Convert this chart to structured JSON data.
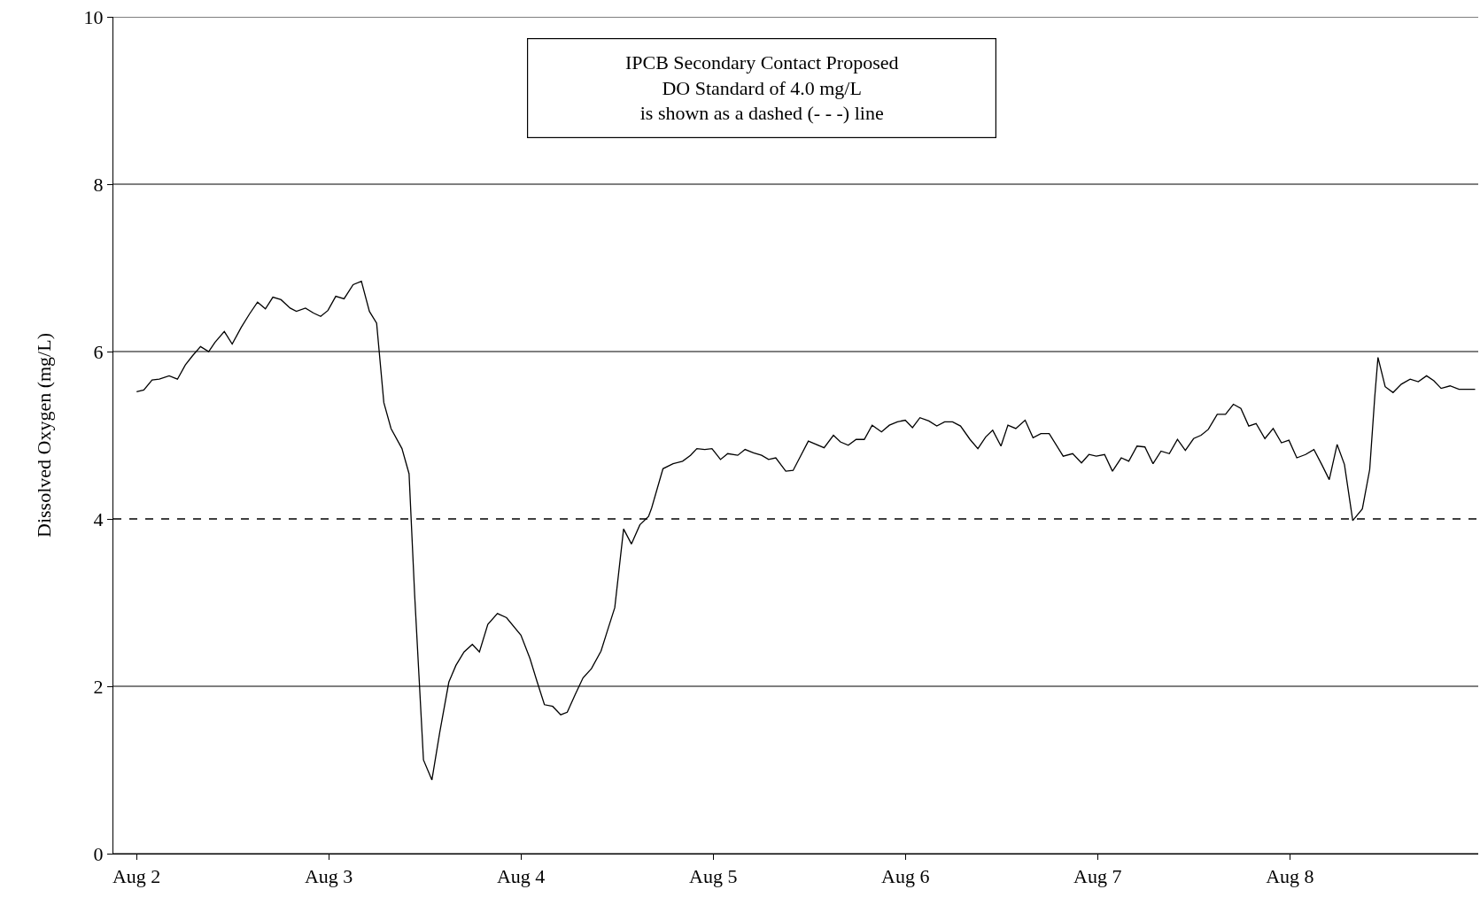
{
  "chart_data": {
    "type": "line",
    "ylabel": "Dissolved Oxygen (mg/L)",
    "annotations": [
      "IPCB Secondary Contact Proposed\nDO Standard of 4.0 mg/L\nis shown as a dashed (- - -) line"
    ],
    "x": [
      "--08-02T00:01",
      "--08-02T00:55",
      "--08-02T01:57",
      "--08-02T02:51",
      "--08-02T04:05",
      "--08-02T05:07",
      "--08-02T06:06",
      "--08-02T07:00",
      "--08-02T08:00",
      "--08-02T09:01",
      "--08-02T09:48",
      "--08-02T10:58",
      "--08-02T11:57",
      "--08-02T13:05",
      "--08-02T14:07",
      "--08-02T15:07",
      "--08-02T16:06",
      "--08-02T17:02",
      "--08-02T18:03",
      "--08-02T19:11",
      "--08-02T19:58",
      "--08-02T21:06",
      "--08-02T22:06",
      "--08-02T23:00",
      "--08-02T23:54",
      "--08-03T00:53",
      "--08-03T01:55",
      "--08-03T03:03",
      "--08-03T04:05",
      "--08-03T05:05",
      "--08-03T05:59",
      "--08-03T06:53",
      "--08-03T07:47",
      "--08-03T09:09",
      "--08-03T10:02",
      "--08-03T10:44",
      "--08-03T11:50",
      "--08-03T12:53",
      "--08-03T13:52",
      "--08-03T15:00",
      "--08-03T15:53",
      "--08-03T16:54",
      "--08-03T17:56",
      "--08-03T18:49",
      "--08-03T19:52",
      "--08-03T21:04",
      "--08-03T22:12",
      "--08-04T00:00",
      "--08-04T01:08",
      "--08-04T02:02",
      "--08-04T02:56",
      "--08-04T03:58",
      "--08-04T04:58",
      "--08-04T05:47",
      "--08-04T06:46",
      "--08-04T07:45",
      "--08-04T08:48",
      "--08-04T10:00",
      "--08-04T10:55",
      "--08-04T11:43",
      "--08-04T12:49",
      "--08-04T13:48",
      "--08-04T14:51",
      "--08-04T15:56",
      "--08-04T16:19",
      "--08-04T17:44",
      "--08-04T19:00",
      "--08-04T20:11",
      "--08-04T21:10",
      "--08-04T21:58",
      "--08-04T22:57",
      "--08-04T23:51",
      "--08-05T00:55",
      "--08-05T01:49",
      "--08-05T03:04",
      "--08-05T03:59",
      "--08-05T05:02",
      "--08-05T06:03",
      "--08-05T06:55",
      "--08-05T07:49",
      "--08-05T09:04",
      "--08-05T09:59",
      "--08-05T11:53",
      "--08-05T13:51",
      "--08-05T15:01",
      "--08-05T15:53",
      "--08-05T16:52",
      "--08-05T17:51",
      "--08-05T18:52",
      "--08-05T19:51",
      "--08-05T21:01",
      "--08-05T22:00",
      "--08-05T23:00",
      "--08-05T23:59",
      "--08-06T00:53",
      "--08-06T01:49",
      "--08-06T02:56",
      "--08-06T03:55",
      "--08-06T04:54",
      "--08-06T05:53",
      "--08-06T06:53",
      "--08-06T08:04",
      "--08-06T09:03",
      "--08-06T10:02",
      "--08-06T10:54",
      "--08-06T11:56",
      "--08-06T12:48",
      "--08-06T13:47",
      "--08-06T14:57",
      "--08-06T15:56",
      "--08-06T16:55",
      "--08-06T17:57",
      "--08-06T19:42",
      "--08-06T20:53",
      "--08-06T21:59",
      "--08-06T22:55",
      "--08-06T23:50",
      "--08-07T00:52",
      "--08-07T01:51",
      "--08-07T02:57",
      "--08-07T03:53",
      "--08-07T04:55",
      "--08-07T05:54",
      "--08-07T06:55",
      "--08-07T07:55",
      "--08-07T08:57",
      "--08-07T09:58",
      "--08-07T10:57",
      "--08-07T11:59",
      "--08-07T12:55",
      "--08-07T13:49",
      "--08-07T14:56",
      "--08-07T15:58",
      "--08-07T16:57",
      "--08-07T17:53",
      "--08-07T18:52",
      "--08-07T19:47",
      "--08-07T20:53",
      "--08-07T21:55",
      "--08-07T22:57",
      "--08-07T23:53",
      "--08-08T00:52",
      "--08-08T01:58",
      "--08-08T03:00",
      "--08-08T03:59",
      "--08-08T04:55",
      "--08-08T05:54",
      "--08-08T06:49",
      "--08-08T07:51",
      "--08-08T09:03",
      "--08-08T09:58",
      "--08-08T10:36",
      "--08-08T11:00",
      "--08-08T11:54",
      "--08-08T12:53",
      "--08-08T13:55",
      "--08-08T15:01",
      "--08-08T16:02",
      "--08-08T17:04",
      "--08-08T17:59",
      "--08-08T18:53",
      "--08-08T20:00",
      "--08-08T21:07",
      "--08-08T23:08"
    ],
    "series": [
      {
        "color": "#000000",
        "values": [
          5.52,
          5.54,
          5.66,
          5.67,
          5.71,
          5.67,
          5.84,
          5.95,
          6.06,
          6.0,
          6.11,
          6.24,
          6.09,
          6.29,
          6.45,
          6.59,
          6.51,
          6.65,
          6.62,
          6.52,
          6.48,
          6.52,
          6.46,
          6.42,
          6.49,
          6.66,
          6.63,
          6.8,
          6.84,
          6.48,
          6.34,
          5.39,
          5.08,
          4.84,
          4.54,
          3.09,
          1.12,
          0.88,
          1.45,
          2.05,
          2.25,
          2.41,
          2.5,
          2.41,
          2.74,
          2.87,
          2.82,
          2.61,
          2.33,
          2.05,
          1.78,
          1.76,
          1.66,
          1.69,
          1.9,
          2.1,
          2.21,
          2.42,
          2.7,
          2.94,
          3.88,
          3.7,
          3.93,
          4.03,
          4.13,
          4.6,
          4.66,
          4.69,
          4.76,
          4.84,
          4.83,
          4.84,
          4.71,
          4.78,
          4.76,
          4.83,
          4.79,
          4.76,
          4.71,
          4.73,
          4.57,
          4.58,
          4.93,
          4.85,
          5.0,
          4.92,
          4.88,
          4.95,
          4.95,
          5.12,
          5.04,
          5.12,
          5.16,
          5.18,
          5.09,
          5.21,
          5.17,
          5.11,
          5.16,
          5.16,
          5.11,
          4.95,
          4.84,
          4.98,
          5.06,
          4.87,
          5.12,
          5.08,
          5.18,
          4.97,
          5.02,
          5.02,
          4.75,
          4.78,
          4.67,
          4.77,
          4.75,
          4.77,
          4.57,
          4.73,
          4.69,
          4.87,
          4.86,
          4.66,
          4.81,
          4.78,
          4.95,
          4.82,
          4.96,
          5.0,
          5.07,
          5.25,
          5.25,
          5.37,
          5.32,
          5.11,
          5.14,
          4.96,
          5.08,
          4.91,
          4.94,
          4.73,
          4.77,
          4.83,
          4.65,
          4.47,
          4.89,
          4.65,
          3.98,
          4.12,
          4.59,
          5.46,
          5.93,
          5.58,
          5.51,
          5.61,
          5.67,
          5.64,
          5.71,
          5.65,
          5.56,
          5.59,
          5.55,
          5.55
        ]
      }
    ],
    "xlim": [
      "--08-01T21:07",
      "--08-08T23:31"
    ],
    "xticks": [
      {
        "value": "--08-02",
        "label": "Aug 2"
      },
      {
        "value": "--08-03",
        "label": "Aug 3"
      },
      {
        "value": "--08-04",
        "label": "Aug 4"
      },
      {
        "value": "--08-05",
        "label": "Aug 5"
      },
      {
        "value": "--08-06",
        "label": "Aug 6"
      },
      {
        "value": "--08-07",
        "label": "Aug 7"
      },
      {
        "value": "--08-08",
        "label": "Aug 8"
      }
    ],
    "ylim": [
      0,
      10
    ],
    "yticks": [
      0,
      2,
      4,
      6,
      8,
      10
    ],
    "ref_lines": [
      {
        "axis": "y",
        "value": 4,
        "line_style": "dashed",
        "color": "#000000"
      }
    ],
    "grid": "y",
    "marker": "none",
    "line_style": "solid"
  }
}
